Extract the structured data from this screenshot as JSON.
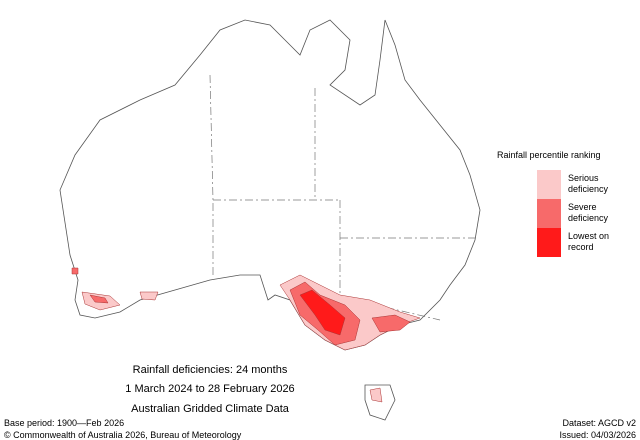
{
  "legend": {
    "title": "Rainfall percentile ranking",
    "items": [
      {
        "name": "Serious deficiency",
        "color": "#fbc9c9"
      },
      {
        "name": "Severe deficiency",
        "color": "#f76a6a"
      },
      {
        "name": "Lowest on record",
        "color": "#ff1a1a"
      }
    ]
  },
  "caption": {
    "line1": "Rainfall deficiencies: 24 months",
    "line2": "1 March 2024 to 28 February 2026",
    "line3": "Australian Gridded Climate Data"
  },
  "footer": {
    "base_period": "Base period: 1900—Feb 2026",
    "dataset": "Dataset: AGCD v2",
    "copyright": "© Commonwealth of Australia 2026, Bureau of Meteorology",
    "issued": "Issued: 04/03/2026"
  }
}
